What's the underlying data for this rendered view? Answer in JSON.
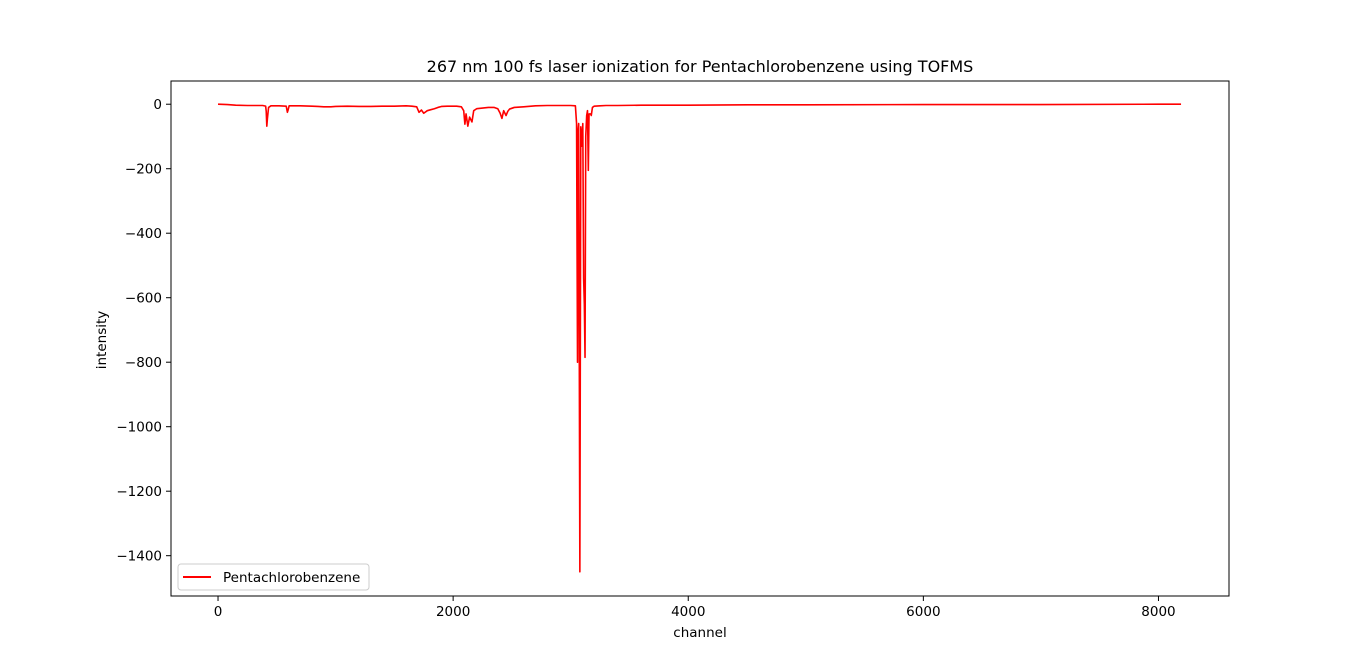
{
  "chart_data": {
    "type": "line",
    "title": "267 nm 100 fs laser ionization for Pentachlorobenzene using TOFMS",
    "xlabel": "channel",
    "ylabel": "intensity",
    "xlim": [
      -400,
      8600
    ],
    "ylim": [
      -1525,
      72
    ],
    "xticks": [
      0,
      2000,
      4000,
      6000,
      8000
    ],
    "xtick_labels": [
      "0",
      "2000",
      "4000",
      "6000",
      "8000"
    ],
    "yticks": [
      0,
      -200,
      -400,
      -600,
      -800,
      -1000,
      -1200,
      -1400
    ],
    "ytick_labels": [
      "0",
      "−200",
      "−400",
      "−600",
      "−800",
      "−1000",
      "−1200",
      "−1400"
    ],
    "grid": false,
    "legend": {
      "position": "lower-left",
      "entries": [
        "Pentachlorobenzene"
      ]
    },
    "series": [
      {
        "name": "Pentachlorobenzene",
        "color": "#ff0000",
        "points": [
          [
            0,
            0
          ],
          [
            80,
            -1
          ],
          [
            150,
            -3
          ],
          [
            250,
            -4
          ],
          [
            380,
            -4
          ],
          [
            405,
            -6
          ],
          [
            410,
            -22
          ],
          [
            415,
            -68
          ],
          [
            420,
            -45
          ],
          [
            430,
            -10
          ],
          [
            450,
            -5
          ],
          [
            520,
            -5
          ],
          [
            580,
            -6
          ],
          [
            590,
            -25
          ],
          [
            596,
            -18
          ],
          [
            605,
            -5
          ],
          [
            700,
            -5
          ],
          [
            800,
            -6
          ],
          [
            850,
            -7
          ],
          [
            900,
            -8
          ],
          [
            960,
            -8
          ],
          [
            1000,
            -7
          ],
          [
            1100,
            -6
          ],
          [
            1200,
            -7
          ],
          [
            1300,
            -7
          ],
          [
            1400,
            -6
          ],
          [
            1500,
            -6
          ],
          [
            1600,
            -5
          ],
          [
            1650,
            -6
          ],
          [
            1690,
            -8
          ],
          [
            1710,
            -25
          ],
          [
            1730,
            -18
          ],
          [
            1750,
            -28
          ],
          [
            1780,
            -20
          ],
          [
            1810,
            -17
          ],
          [
            1840,
            -14
          ],
          [
            1870,
            -10
          ],
          [
            1900,
            -7
          ],
          [
            1950,
            -6
          ],
          [
            2030,
            -6
          ],
          [
            2070,
            -8
          ],
          [
            2090,
            -20
          ],
          [
            2100,
            -62
          ],
          [
            2110,
            -30
          ],
          [
            2125,
            -68
          ],
          [
            2140,
            -40
          ],
          [
            2160,
            -55
          ],
          [
            2175,
            -20
          ],
          [
            2200,
            -14
          ],
          [
            2250,
            -12
          ],
          [
            2300,
            -10
          ],
          [
            2350,
            -10
          ],
          [
            2380,
            -14
          ],
          [
            2400,
            -28
          ],
          [
            2415,
            -44
          ],
          [
            2430,
            -20
          ],
          [
            2450,
            -35
          ],
          [
            2465,
            -22
          ],
          [
            2480,
            -15
          ],
          [
            2520,
            -10
          ],
          [
            2600,
            -8
          ],
          [
            2700,
            -5
          ],
          [
            2800,
            -4
          ],
          [
            2900,
            -4
          ],
          [
            3000,
            -4
          ],
          [
            3040,
            -5
          ],
          [
            3050,
            -60
          ],
          [
            3058,
            -800
          ],
          [
            3063,
            -80
          ],
          [
            3068,
            -60
          ],
          [
            3078,
            -1450
          ],
          [
            3086,
            -70
          ],
          [
            3095,
            -130
          ],
          [
            3103,
            -60
          ],
          [
            3110,
            -540
          ],
          [
            3116,
            -620
          ],
          [
            3122,
            -785
          ],
          [
            3128,
            -100
          ],
          [
            3136,
            -35
          ],
          [
            3143,
            -20
          ],
          [
            3150,
            -205
          ],
          [
            3156,
            -30
          ],
          [
            3170,
            -30
          ],
          [
            3175,
            -35
          ],
          [
            3185,
            -10
          ],
          [
            3200,
            -6
          ],
          [
            3250,
            -5
          ],
          [
            3300,
            -4
          ],
          [
            3400,
            -4
          ],
          [
            3600,
            -3
          ],
          [
            4000,
            -3
          ],
          [
            4500,
            -2
          ],
          [
            5000,
            -2
          ],
          [
            6000,
            -1
          ],
          [
            7000,
            -1
          ],
          [
            8000,
            0
          ],
          [
            8192,
            0
          ]
        ]
      }
    ]
  }
}
